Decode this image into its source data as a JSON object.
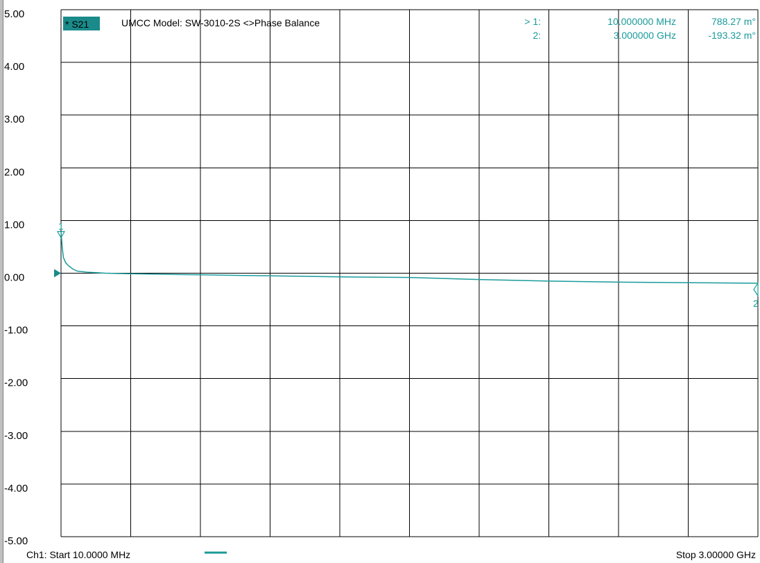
{
  "colors": {
    "trace": "#1a9a9a",
    "trace_dark": "#0f5f5f",
    "badge_bg": "#1a8a8a",
    "badge_text": "#ffffff",
    "grid": "#000000",
    "background": "#ffffff"
  },
  "header": {
    "trace_badge": "* S21",
    "title": "UMCC Model: SW-3010-2S <>Phase Balance"
  },
  "markers": [
    {
      "index_label": "> 1:",
      "freq": "10.000000 MHz",
      "value": "788.27 m°",
      "symbol": "1"
    },
    {
      "index_label": "2:",
      "freq": "3.000000 GHz",
      "value": "-193.32 m°",
      "symbol": "2"
    }
  ],
  "footer": {
    "start_label": "Ch1: Start  10.0000 MHz",
    "stop_label": "Stop  3.00000 GHz"
  },
  "chart_data": {
    "type": "line",
    "title": "UMCC Model: SW-3010-2S <>Phase Balance",
    "ylim": [
      -5,
      5
    ],
    "xlim_mhz": [
      10,
      3000
    ],
    "yticks": [
      "5.00",
      "4.00",
      "3.00",
      "2.00",
      "1.00",
      "0.00",
      "-1.00",
      "-2.00",
      "-3.00",
      "-4.00",
      "-5.00"
    ],
    "grid": true,
    "x_divisions": 10,
    "y_divisions": 10,
    "series": [
      {
        "name": "S21",
        "x_mhz": [
          10,
          15,
          20,
          30,
          40,
          60,
          80,
          120,
          200,
          300,
          600,
          900,
          1200,
          1500,
          1800,
          2100,
          2400,
          2700,
          3000
        ],
        "values": [
          0.79,
          0.5,
          0.3,
          0.2,
          0.15,
          0.08,
          0.04,
          0.02,
          0.0,
          -0.01,
          -0.03,
          -0.05,
          -0.07,
          -0.08,
          -0.12,
          -0.15,
          -0.17,
          -0.18,
          -0.19
        ]
      }
    ]
  }
}
